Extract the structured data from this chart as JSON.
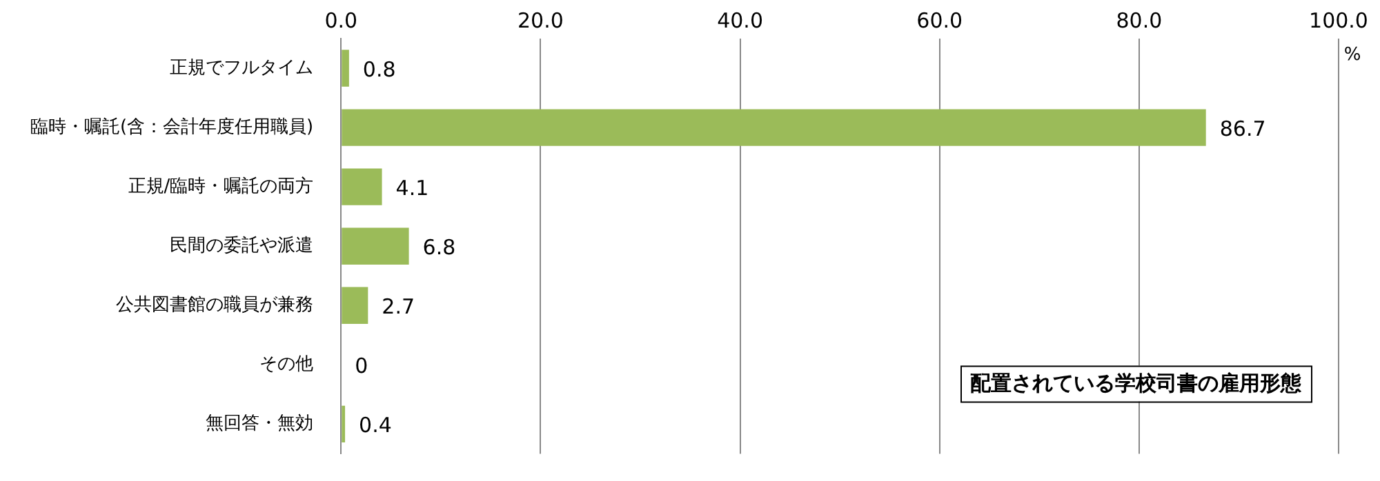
{
  "chart_data": {
    "type": "bar",
    "orientation": "horizontal",
    "title": "配置されている学校司書の雇用形態",
    "xlabel": "%",
    "categories": [
      "正規でフルタイム",
      "臨時・嘱託(含：会計年度任用職員)",
      "正規/臨時・嘱託の両方",
      "民間の委託や派遣",
      "公共図書館の職員が兼務",
      "その他",
      "無回答・無効"
    ],
    "values": [
      0.8,
      86.7,
      4.1,
      6.8,
      2.7,
      0,
      0.4
    ],
    "color": "#9bbb59",
    "xlim": [
      0,
      100
    ],
    "xticks": [
      {
        "value": 0,
        "label": "0.0"
      },
      {
        "value": 20,
        "label": "20.0"
      },
      {
        "value": 40,
        "label": "40.0"
      },
      {
        "value": 60,
        "label": "60.0"
      },
      {
        "value": 80,
        "label": "80.0"
      },
      {
        "value": 100,
        "label": "100.0"
      }
    ],
    "grid": "x",
    "legend": false,
    "data_labels": true
  }
}
